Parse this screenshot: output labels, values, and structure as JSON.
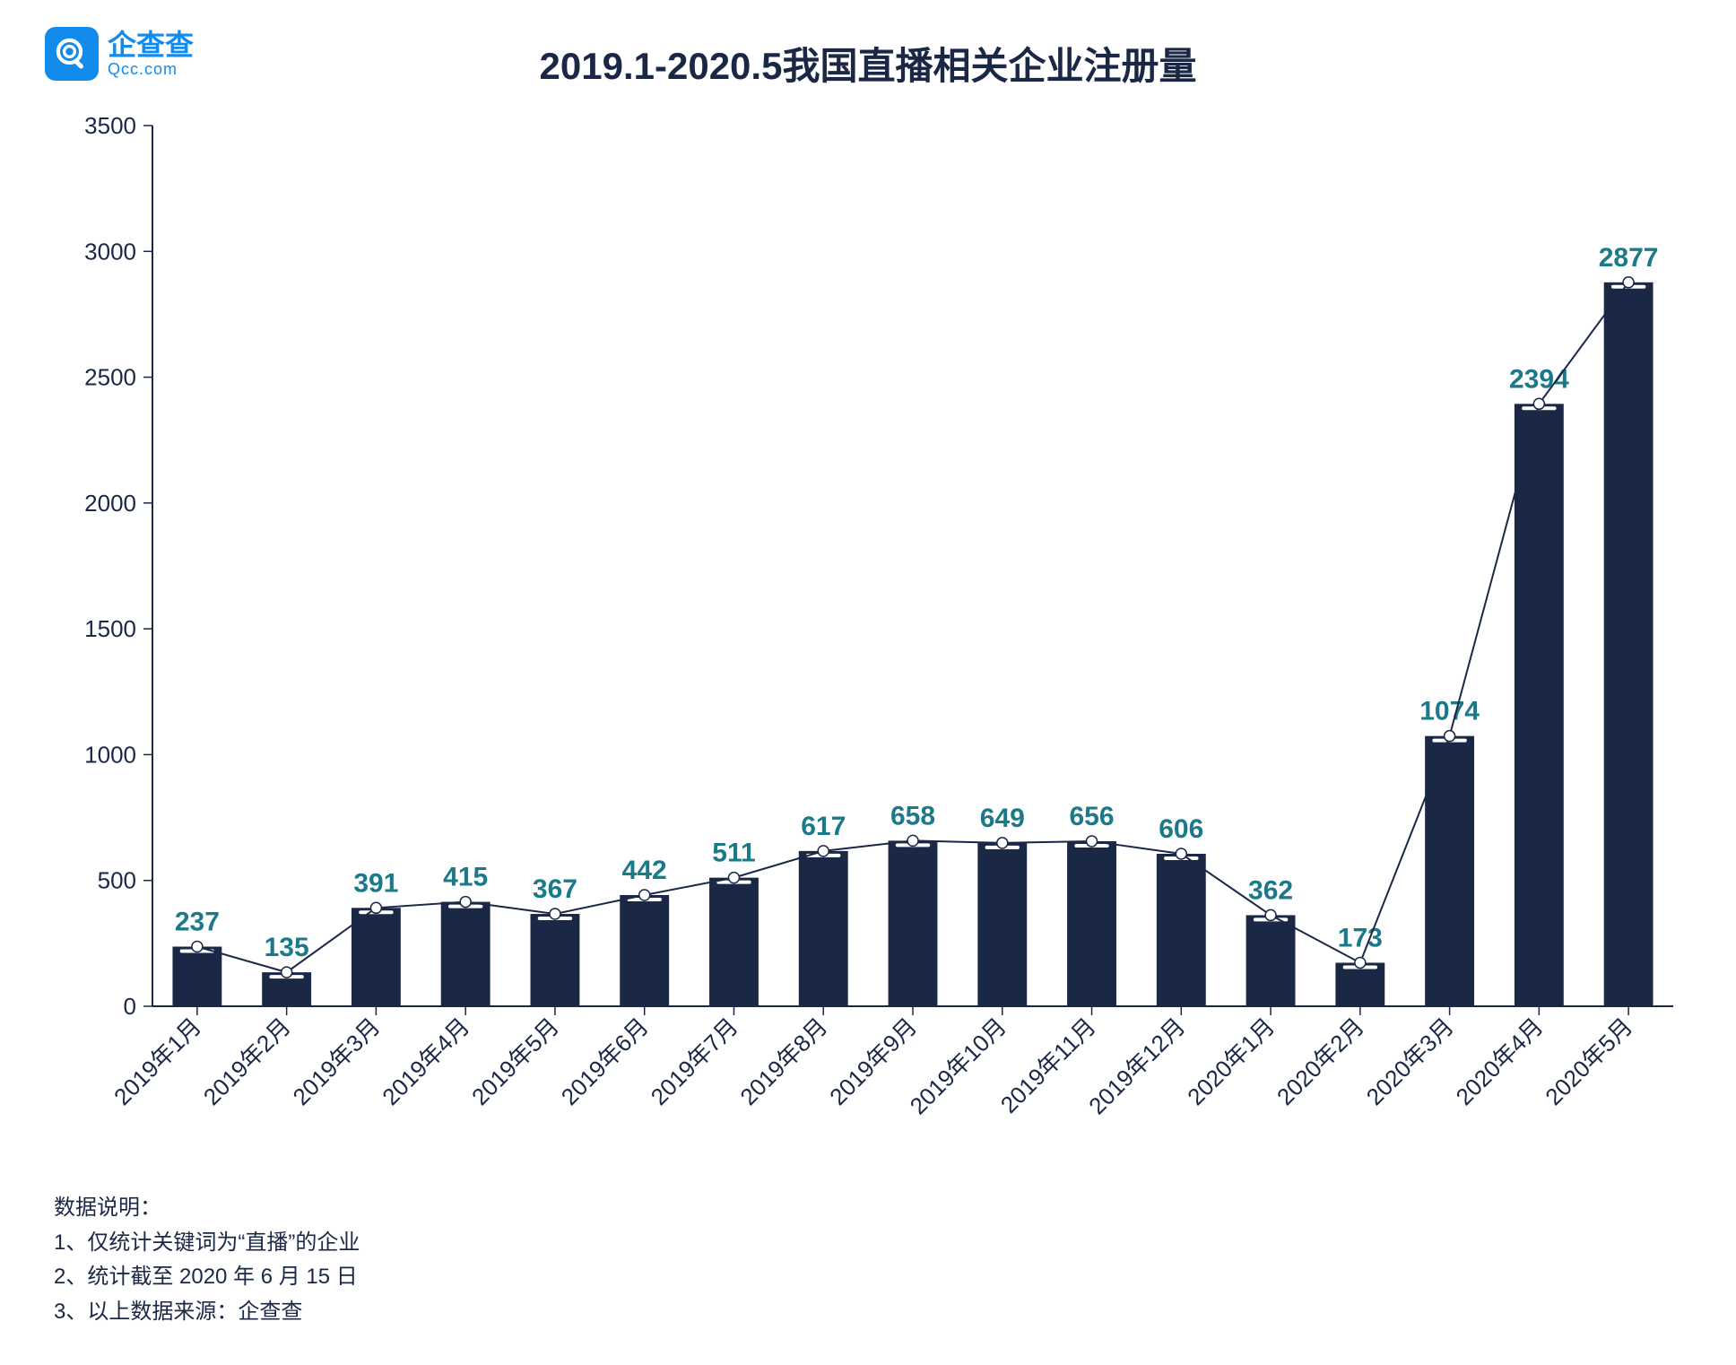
{
  "logo": {
    "cn": "企查查",
    "en": "Qcc.com"
  },
  "title": "2019.1-2020.5我国直播相关企业注册量",
  "title_fontsize": 42,
  "chart": {
    "type": "bar+line",
    "categories": [
      "2019年1月",
      "2019年2月",
      "2019年3月",
      "2019年4月",
      "2019年5月",
      "2019年6月",
      "2019年7月",
      "2019年8月",
      "2019年9月",
      "2019年10月",
      "2019年11月",
      "2019年12月",
      "2020年1月",
      "2020年2月",
      "2020年3月",
      "2020年4月",
      "2020年5月"
    ],
    "values": [
      237,
      135,
      391,
      415,
      367,
      442,
      511,
      617,
      658,
      649,
      656,
      606,
      362,
      173,
      1074,
      2394,
      2877
    ],
    "ylim": [
      0,
      3500
    ],
    "ytick_step": 500,
    "bar_color": "#1a2846",
    "bar_top_accent": "#ffffff",
    "line_color": "#1a2846",
    "marker_fill": "#ffffff",
    "marker_stroke": "#1a2846",
    "value_label_color": "#1a7a8a",
    "value_label_fontsize": 30,
    "axis_color": "#1a2846",
    "tick_label_color": "#1a2846",
    "tick_label_fontsize": 26,
    "background_color": "#ffffff",
    "bar_width_ratio": 0.55,
    "xlabel_rotation_deg": 45
  },
  "footer": {
    "heading": "数据说明：",
    "lines": [
      "1、仅统计关键词为“直播”的企业",
      "2、统计截至 2020 年 6 月 15 日",
      "3、以上数据来源：企查查"
    ],
    "fontsize": 24
  }
}
